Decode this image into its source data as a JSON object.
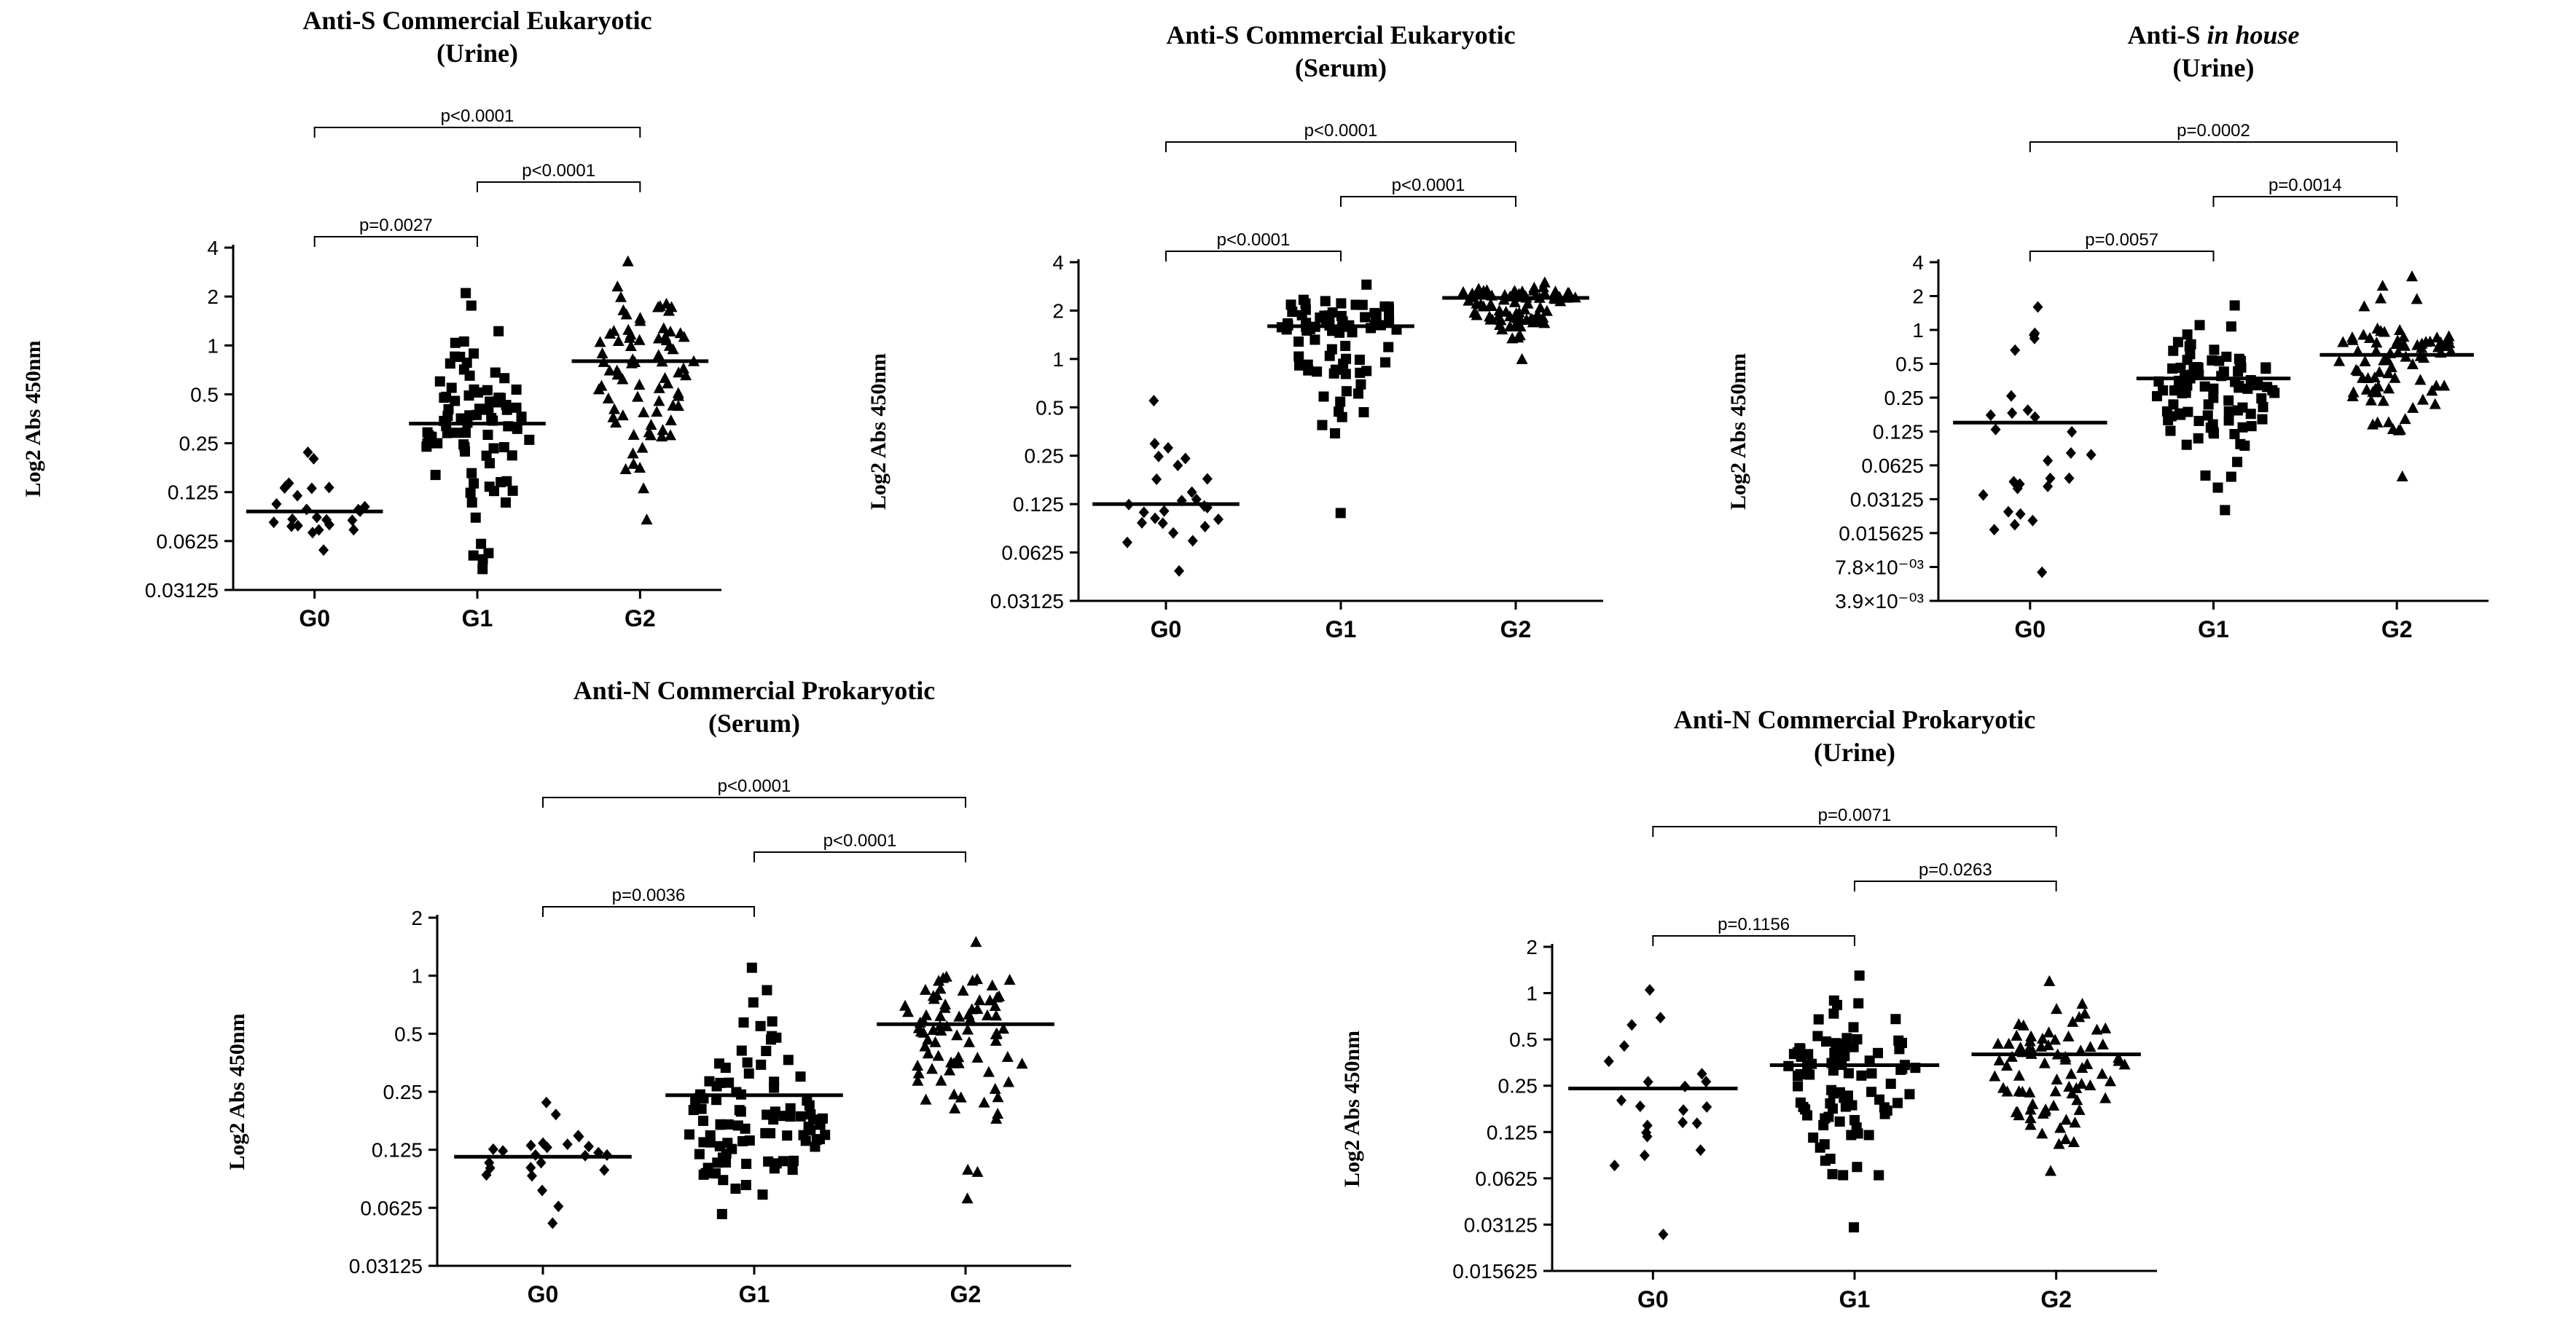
{
  "chart_data": [
    {
      "type": "scatter",
      "title": [
        "Anti-S Commercial Eukaryotic",
        "(Urine)"
      ],
      "ylabel": "Log2 Abs 450nm",
      "categories": [
        "G0",
        "G1",
        "G2"
      ],
      "yscale": "log2",
      "ylim": [
        0.03125,
        4
      ],
      "yticks": [
        "4",
        "2",
        "1",
        "0.5",
        "0.25",
        "0.125",
        "0.0625",
        "0.03125"
      ],
      "ytick_values": [
        4,
        2,
        1,
        0.5,
        0.25,
        0.125,
        0.0625,
        0.03125
      ],
      "medians": [
        0.095,
        0.33,
        0.8
      ],
      "groups": [
        {
          "name": "G0",
          "marker": "diamond",
          "n": 25,
          "min": 0.055,
          "max": 0.22,
          "center": 0.095
        },
        {
          "name": "G1",
          "marker": "square",
          "n": 85,
          "min": 0.042,
          "max": 2.1,
          "center": 0.3
        },
        {
          "name": "G2",
          "marker": "triangle",
          "n": 80,
          "min": 0.085,
          "max": 3.3,
          "center": 0.8
        }
      ],
      "comparisons": [
        {
          "from": "G0",
          "to": "G1",
          "label": "p=0.0027",
          "level": 0
        },
        {
          "from": "G1",
          "to": "G2",
          "label": "p<0.0001",
          "level": 1
        },
        {
          "from": "G0",
          "to": "G2",
          "label": "p<0.0001",
          "level": 2
        }
      ]
    },
    {
      "type": "scatter",
      "title": [
        "Anti-S Commercial Eukaryotic",
        "(Serum)"
      ],
      "ylabel": "Log2 Abs 450nm",
      "categories": [
        "G0",
        "G1",
        "G2"
      ],
      "yscale": "log2",
      "ylim": [
        0.03125,
        4
      ],
      "yticks": [
        "4",
        "2",
        "1",
        "0.5",
        "0.25",
        "0.125",
        "0.0625",
        "0.03125"
      ],
      "ytick_values": [
        4,
        2,
        1,
        0.5,
        0.25,
        0.125,
        0.0625,
        0.03125
      ],
      "medians": [
        0.125,
        1.6,
        2.4
      ],
      "groups": [
        {
          "name": "G0",
          "marker": "diamond",
          "n": 25,
          "min": 0.048,
          "max": 0.55,
          "center": 0.115
        },
        {
          "name": "G1",
          "marker": "square",
          "n": 80,
          "min": 0.11,
          "max": 2.9,
          "center": 1.5
        },
        {
          "name": "G2",
          "marker": "triangle",
          "n": 85,
          "min": 1.0,
          "max": 3.0,
          "center": 2.4
        }
      ],
      "comparisons": [
        {
          "from": "G0",
          "to": "G1",
          "label": "p<0.0001",
          "level": 0
        },
        {
          "from": "G1",
          "to": "G2",
          "label": "p<0.0001",
          "level": 1
        },
        {
          "from": "G0",
          "to": "G2",
          "label": "p<0.0001",
          "level": 2
        }
      ]
    },
    {
      "type": "scatter",
      "title": [
        "Anti-S in house",
        "(Urine)"
      ],
      "title_italic": "in house",
      "ylabel": "Log2 Abs 450nm",
      "categories": [
        "G0",
        "G1",
        "G2"
      ],
      "yscale": "log2",
      "ylim": [
        0.0039,
        4
      ],
      "yticks": [
        "4",
        "2",
        "1",
        "0.5",
        "0.25",
        "0.125",
        "0.0625",
        "0.03125",
        "0.015625",
        "7.8×10⁻⁰³",
        "3.9×10⁻⁰³"
      ],
      "ytick_values": [
        4,
        2,
        1,
        0.5,
        0.25,
        0.125,
        0.0625,
        0.03125,
        0.015625,
        0.0078,
        0.0039
      ],
      "medians": [
        0.15,
        0.37,
        0.6
      ],
      "groups": [
        {
          "name": "G0",
          "marker": "diamond",
          "n": 28,
          "min": 0.007,
          "max": 1.6,
          "center": 0.07
        },
        {
          "name": "G1",
          "marker": "square",
          "n": 90,
          "min": 0.025,
          "max": 1.65,
          "center": 0.3
        },
        {
          "name": "G2",
          "marker": "triangle",
          "n": 80,
          "min": 0.05,
          "max": 3.0,
          "center": 0.55
        }
      ],
      "comparisons": [
        {
          "from": "G0",
          "to": "G1",
          "label": "p=0.0057",
          "level": 0
        },
        {
          "from": "G1",
          "to": "G2",
          "label": "p=0.0014",
          "level": 1
        },
        {
          "from": "G0",
          "to": "G2",
          "label": "p=0.0002",
          "level": 2
        }
      ]
    },
    {
      "type": "scatter",
      "title": [
        "Anti-N Commercial Prokaryotic",
        "(Serum)"
      ],
      "ylabel": "Log2 Abs 450nm",
      "categories": [
        "G0",
        "G1",
        "G2"
      ],
      "yscale": "log2",
      "ylim": [
        0.03125,
        2
      ],
      "yticks": [
        "2",
        "1",
        "0.5",
        "0.25",
        "0.125",
        "0.0625",
        "0.03125"
      ],
      "ytick_values": [
        2,
        1,
        0.5,
        0.25,
        0.125,
        0.0625,
        0.03125
      ],
      "medians": [
        0.115,
        0.24,
        0.56
      ],
      "groups": [
        {
          "name": "G0",
          "marker": "diamond",
          "n": 25,
          "min": 0.052,
          "max": 0.22,
          "center": 0.11
        },
        {
          "name": "G1",
          "marker": "square",
          "n": 95,
          "min": 0.058,
          "max": 1.1,
          "center": 0.16
        },
        {
          "name": "G2",
          "marker": "triangle",
          "n": 80,
          "min": 0.07,
          "max": 1.5,
          "center": 0.5
        }
      ],
      "comparisons": [
        {
          "from": "G0",
          "to": "G1",
          "label": "p=0.0036",
          "level": 0
        },
        {
          "from": "G1",
          "to": "G2",
          "label": "p<0.0001",
          "level": 1
        },
        {
          "from": "G0",
          "to": "G2",
          "label": "p<0.0001",
          "level": 2
        }
      ]
    },
    {
      "type": "scatter",
      "title": [
        "Anti-N Commercial Prokaryotic",
        "(Urine)"
      ],
      "ylabel": "Log2 Abs 450nm",
      "categories": [
        "G0",
        "G1",
        "G2"
      ],
      "yscale": "log2",
      "ylim": [
        0.015625,
        2
      ],
      "yticks": [
        "2",
        "1",
        "0.5",
        "0.25",
        "0.125",
        "0.0625",
        "0.03125",
        "0.015625"
      ],
      "ytick_values": [
        2,
        1,
        0.5,
        0.25,
        0.125,
        0.0625,
        0.03125,
        0.015625
      ],
      "medians": [
        0.24,
        0.34,
        0.4
      ],
      "groups": [
        {
          "name": "G0",
          "marker": "diamond",
          "n": 22,
          "min": 0.027,
          "max": 1.05,
          "center": 0.18
        },
        {
          "name": "G1",
          "marker": "square",
          "n": 90,
          "min": 0.03,
          "max": 1.3,
          "center": 0.3
        },
        {
          "name": "G2",
          "marker": "triangle",
          "n": 80,
          "min": 0.07,
          "max": 1.2,
          "center": 0.35
        }
      ],
      "comparisons": [
        {
          "from": "G0",
          "to": "G1",
          "label": "p=0.1156",
          "level": 0
        },
        {
          "from": "G1",
          "to": "G2",
          "label": "p=0.0263",
          "level": 1
        },
        {
          "from": "G0",
          "to": "G2",
          "label": "p=0.0071",
          "level": 2
        }
      ]
    }
  ]
}
